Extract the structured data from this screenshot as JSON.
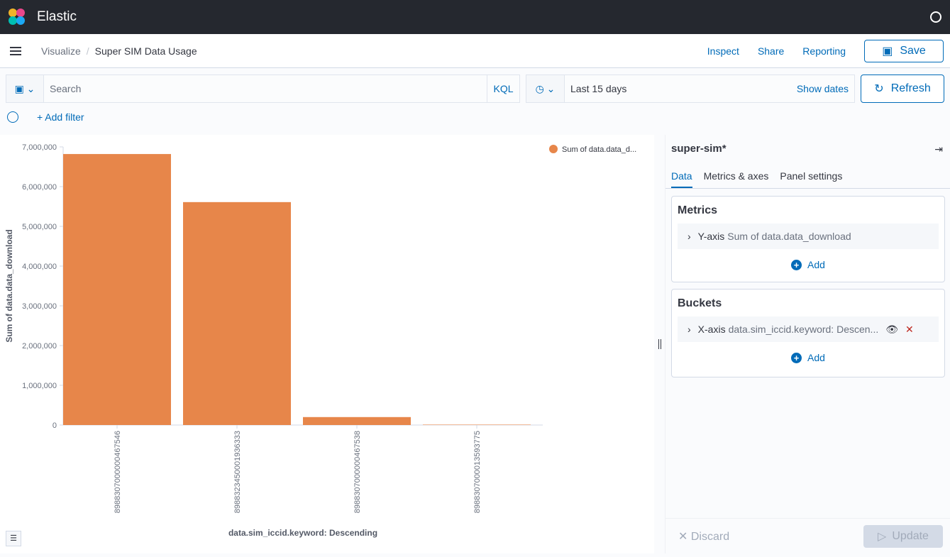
{
  "app": {
    "title": "Elastic"
  },
  "breadcrumb": {
    "parent": "Visualize",
    "current": "Super SIM Data Usage"
  },
  "header_actions": {
    "inspect": "Inspect",
    "share": "Share",
    "reporting": "Reporting",
    "save": "Save"
  },
  "query": {
    "placeholder": "Search",
    "language": "KQL",
    "date_range": "Last 15 days",
    "show_dates": "Show dates",
    "refresh": "Refresh"
  },
  "filter": {
    "add": "+ Add filter"
  },
  "chart_data": {
    "type": "bar",
    "categories": [
      "8988307000000467546",
      "8988323450001936333",
      "8988307000000467538",
      "8988307000013593775"
    ],
    "series": [
      {
        "name": "Sum of data.data_d...",
        "values": [
          6820000,
          5610000,
          200000,
          10000
        ]
      }
    ],
    "xlabel": "data.sim_iccid.keyword: Descending",
    "ylabel": "Sum of data.data_download",
    "ylim": [
      0,
      7000000
    ],
    "yticks": [
      "0",
      "1,000,000",
      "2,000,000",
      "3,000,000",
      "4,000,000",
      "5,000,000",
      "6,000,000",
      "7,000,000"
    ],
    "legend": "top-right",
    "color": "#e7864a"
  },
  "panel": {
    "index": "super-sim*",
    "tabs": [
      "Data",
      "Metrics & axes",
      "Panel settings"
    ],
    "metrics": {
      "title": "Metrics",
      "axis": "Y-axis",
      "desc": "Sum of data.data_download",
      "add": "Add"
    },
    "buckets": {
      "title": "Buckets",
      "axis": "X-axis",
      "desc": "data.sim_iccid.keyword: Descen...",
      "add": "Add"
    },
    "discard": "Discard",
    "update": "Update"
  }
}
